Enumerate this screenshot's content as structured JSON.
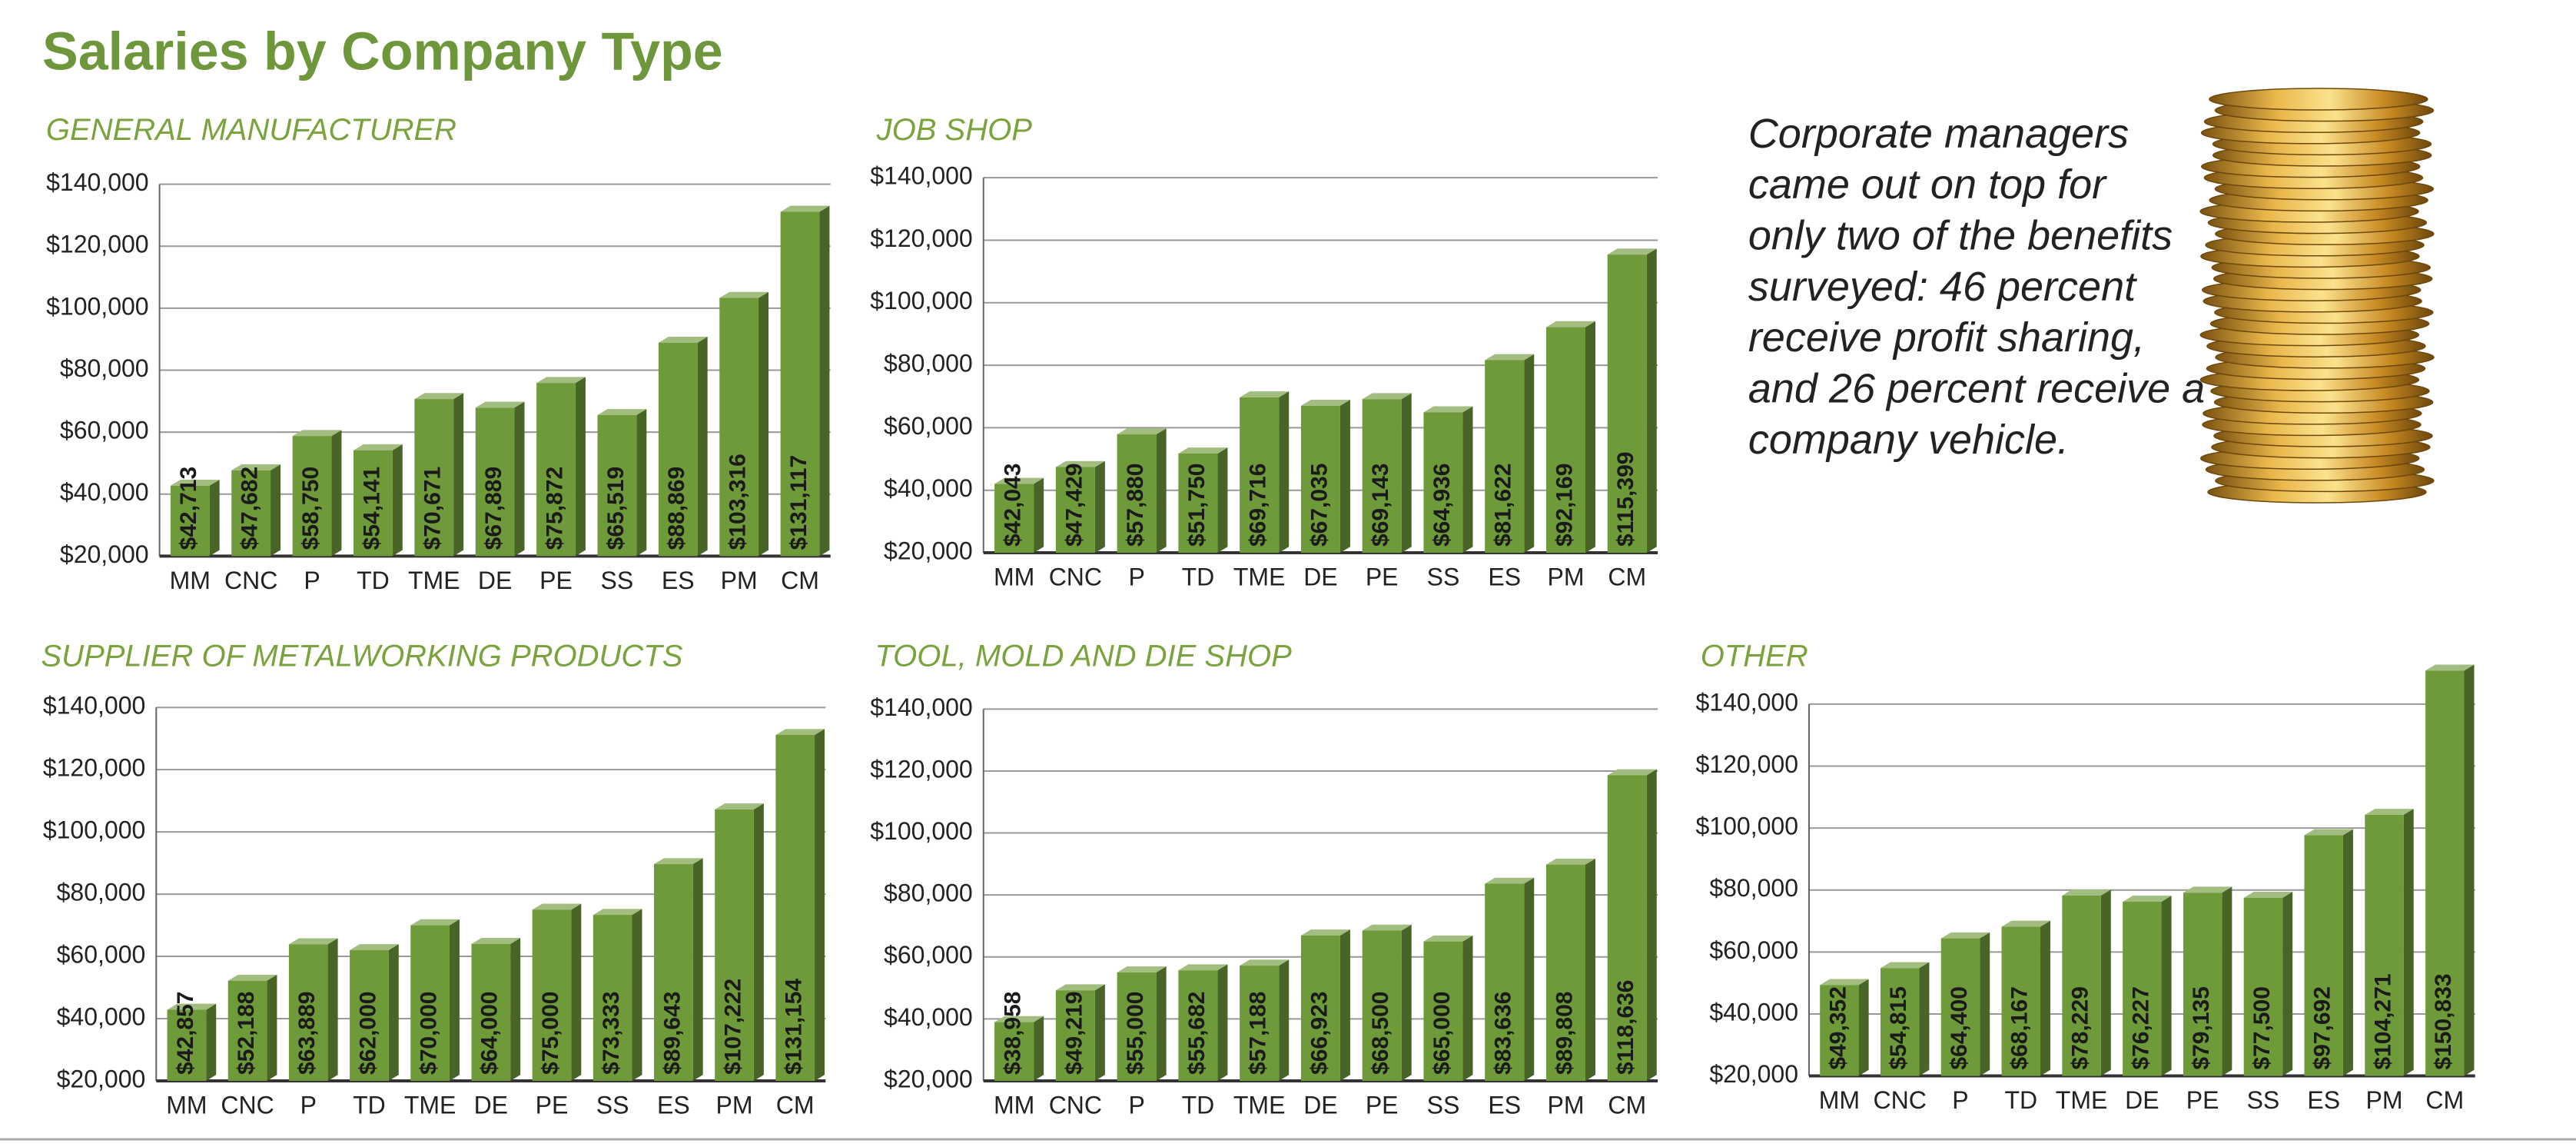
{
  "title": "Salaries by Company Type",
  "note": [
    "Corporate managers",
    "came out on top for",
    "only two of the benefits",
    "surveyed: 46 percent",
    "receive profit sharing,",
    "and 26 percent receive a",
    "company vehicle."
  ],
  "chart_data": [
    {
      "type": "bar",
      "title": "GENERAL MANUFACTURER",
      "color": "#6f9a3a",
      "categories": [
        "MM",
        "CNC",
        "P",
        "TD",
        "TME",
        "DE",
        "PE",
        "SS",
        "ES",
        "PM",
        "CM"
      ],
      "values": [
        42713,
        47682,
        58750,
        54141,
        70671,
        67889,
        75872,
        65519,
        88869,
        103316,
        131117
      ],
      "value_labels": [
        "$42,713",
        "$47,682",
        "$58,750",
        "$54,141",
        "$70,671",
        "$67,889",
        "$75,872",
        "$65,519",
        "$88,869",
        "$103,316",
        "$131,117"
      ],
      "ylim": [
        20000,
        140000
      ],
      "yticks": [
        {
          "value": 20000,
          "label": "$20,000"
        },
        {
          "value": 40000,
          "label": "$40,000"
        },
        {
          "value": 60000,
          "label": "$60,000"
        },
        {
          "value": 80000,
          "label": "$80,000"
        },
        {
          "value": 100000,
          "label": "$100,000"
        },
        {
          "value": 120000,
          "label": "$120,000"
        },
        {
          "value": 140000,
          "label": "$140,000"
        }
      ],
      "grid": true
    },
    {
      "type": "bar",
      "title": "JOB SHOP",
      "color": "#6f9a3a",
      "categories": [
        "MM",
        "CNC",
        "P",
        "TD",
        "TME",
        "DE",
        "PE",
        "SS",
        "ES",
        "PM",
        "CM"
      ],
      "values": [
        42043,
        47429,
        57880,
        51750,
        69716,
        67035,
        69143,
        64936,
        81622,
        92169,
        115399
      ],
      "value_labels": [
        "$42,043",
        "$47,429",
        "$57,880",
        "$51,750",
        "$69,716",
        "$67,035",
        "$69,143",
        "$64,936",
        "$81,622",
        "$92,169",
        "$115,399"
      ],
      "ylim": [
        20000,
        140000
      ],
      "yticks": [
        {
          "value": 20000,
          "label": "$20,000"
        },
        {
          "value": 40000,
          "label": "$40,000"
        },
        {
          "value": 60000,
          "label": "$60,000"
        },
        {
          "value": 80000,
          "label": "$80,000"
        },
        {
          "value": 100000,
          "label": "$100,000"
        },
        {
          "value": 120000,
          "label": "$120,000"
        },
        {
          "value": 140000,
          "label": "$140,000"
        }
      ],
      "grid": true
    },
    {
      "type": "bar",
      "title": "SUPPLIER OF METALWORKING PRODUCTS",
      "color": "#6f9a3a",
      "categories": [
        "MM",
        "CNC",
        "P",
        "TD",
        "TME",
        "DE",
        "PE",
        "SS",
        "ES",
        "PM",
        "CM"
      ],
      "values": [
        42857,
        52188,
        63889,
        62000,
        70000,
        64000,
        75000,
        73333,
        89643,
        107222,
        131154
      ],
      "value_labels": [
        "$42,857",
        "$52,188",
        "$63,889",
        "$62,000",
        "$70,000",
        "$64,000",
        "$75,000",
        "$73,333",
        "$89,643",
        "$107,222",
        "$131,154"
      ],
      "ylim": [
        20000,
        140000
      ],
      "yticks": [
        {
          "value": 20000,
          "label": "$20,000"
        },
        {
          "value": 40000,
          "label": "$40,000"
        },
        {
          "value": 60000,
          "label": "$60,000"
        },
        {
          "value": 80000,
          "label": "$80,000"
        },
        {
          "value": 100000,
          "label": "$100,000"
        },
        {
          "value": 120000,
          "label": "$120,000"
        },
        {
          "value": 140000,
          "label": "$140,000"
        }
      ],
      "grid": true
    },
    {
      "type": "bar",
      "title": "TOOL, MOLD AND DIE SHOP",
      "color": "#6f9a3a",
      "categories": [
        "MM",
        "CNC",
        "P",
        "TD",
        "TME",
        "DE",
        "PE",
        "SS",
        "ES",
        "PM",
        "CM"
      ],
      "values": [
        38958,
        49219,
        55000,
        55682,
        57188,
        66923,
        68500,
        65000,
        83636,
        89808,
        118636
      ],
      "value_labels": [
        "$38,958",
        "$49,219",
        "$55,000",
        "$55,682",
        "$57,188",
        "$66,923",
        "$68,500",
        "$65,000",
        "$83,636",
        "$89,808",
        "$118,636"
      ],
      "ylim": [
        20000,
        140000
      ],
      "yticks": [
        {
          "value": 20000,
          "label": "$20,000"
        },
        {
          "value": 40000,
          "label": "$40,000"
        },
        {
          "value": 60000,
          "label": "$60,000"
        },
        {
          "value": 80000,
          "label": "$80,000"
        },
        {
          "value": 100000,
          "label": "$100,000"
        },
        {
          "value": 120000,
          "label": "$120,000"
        },
        {
          "value": 140000,
          "label": "$140,000"
        }
      ],
      "grid": true
    },
    {
      "type": "bar",
      "title": "OTHER",
      "color": "#6f9a3a",
      "categories": [
        "MM",
        "CNC",
        "P",
        "TD",
        "TME",
        "DE",
        "PE",
        "SS",
        "ES",
        "PM",
        "CM"
      ],
      "values": [
        49352,
        54815,
        64400,
        68167,
        78229,
        76227,
        79135,
        77500,
        97692,
        104271,
        150833
      ],
      "value_labels": [
        "$49,352",
        "$54,815",
        "$64,400",
        "$68,167",
        "$78,229",
        "$76,227",
        "$79,135",
        "$77,500",
        "$97,692",
        "$104,271",
        "$150,833"
      ],
      "ylim": [
        20000,
        140000
      ],
      "yticks": [
        {
          "value": 20000,
          "label": "$20,000"
        },
        {
          "value": 40000,
          "label": "$40,000"
        },
        {
          "value": 60000,
          "label": "$60,000"
        },
        {
          "value": 80000,
          "label": "$80,000"
        },
        {
          "value": 100000,
          "label": "$100,000"
        },
        {
          "value": 120000,
          "label": "$120,000"
        },
        {
          "value": 140000,
          "label": "$140,000"
        }
      ],
      "grid": true
    }
  ]
}
